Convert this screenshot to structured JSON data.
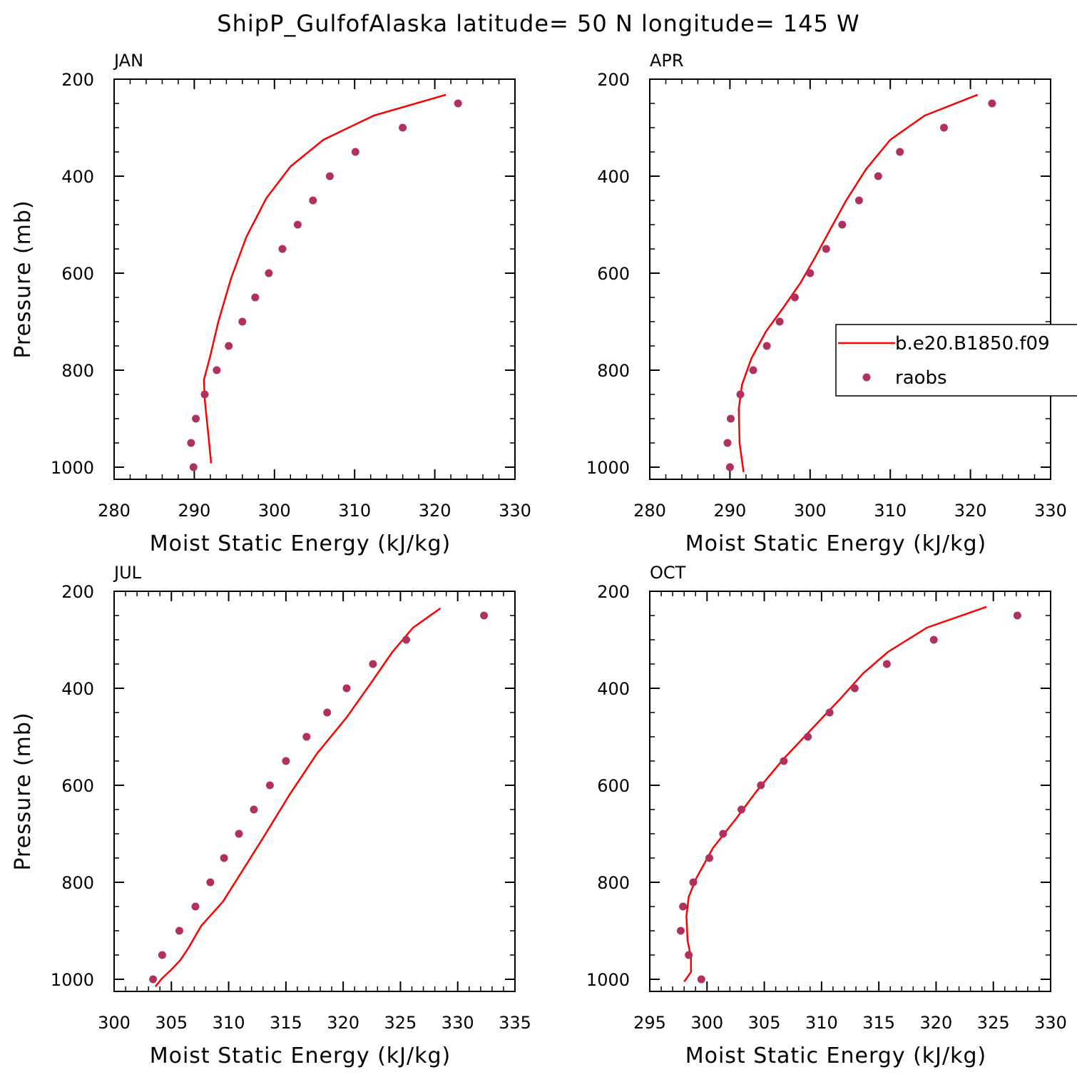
{
  "title": "ShipP_GulfofAlaska  latitude= 50 N longitude= 145 W",
  "colors": {
    "model_line": "#ff0000",
    "obs_marker": "#b03060",
    "axis": "#000000"
  },
  "legend": {
    "model_label": "b.e20.B1850.f09",
    "obs_label": "raobs"
  },
  "chart_data": [
    {
      "type": "line",
      "panel_title": "JAN",
      "xlabel": "Moist Static Energy (kJ/kg)",
      "ylabel": "Pressure (mb)",
      "xlim": [
        280,
        330
      ],
      "ylim": [
        1025,
        200
      ],
      "xticks": [
        280,
        290,
        300,
        310,
        320,
        330
      ],
      "yticks": [
        200,
        400,
        600,
        800,
        1000
      ],
      "series": [
        {
          "name": "b.e20.B1850.f09",
          "kind": "line",
          "x": [
            321.4,
            312.4,
            306.1,
            302.0,
            299.0,
            296.5,
            294.6,
            293.0,
            292.0,
            291.2,
            291.3,
            291.8,
            292.1
          ],
          "y": [
            232,
            275,
            325,
            380,
            445,
            525,
            610,
            700,
            770,
            820,
            860,
            940,
            992
          ]
        },
        {
          "name": "raobs",
          "kind": "scatter",
          "x": [
            322.9,
            316.0,
            310.1,
            306.9,
            304.8,
            302.9,
            301.0,
            299.3,
            297.6,
            296.0,
            294.3,
            292.8,
            291.3,
            290.2,
            289.6,
            289.9
          ],
          "y": [
            250,
            300,
            350,
            400,
            450,
            500,
            550,
            600,
            650,
            700,
            750,
            800,
            850,
            900,
            950,
            1000
          ]
        }
      ]
    },
    {
      "type": "line",
      "panel_title": "APR",
      "xlabel": "Moist Static Energy (kJ/kg)",
      "ylabel": "",
      "xlim": [
        280,
        330
      ],
      "ylim": [
        1025,
        200
      ],
      "xticks": [
        280,
        290,
        300,
        310,
        320,
        330
      ],
      "yticks": [
        200,
        400,
        600,
        800,
        1000
      ],
      "series": [
        {
          "name": "b.e20.B1850.f09",
          "kind": "line",
          "x": [
            320.9,
            314.3,
            310.0,
            307.0,
            304.5,
            302.5,
            300.7,
            298.8,
            296.7,
            294.5,
            292.7,
            291.5,
            291.1,
            291.2,
            291.7
          ],
          "y": [
            232,
            275,
            325,
            385,
            450,
            510,
            565,
            620,
            670,
            720,
            775,
            830,
            880,
            950,
            1010
          ]
        },
        {
          "name": "raobs",
          "kind": "scatter",
          "x": [
            322.7,
            316.7,
            311.2,
            308.5,
            306.1,
            304.0,
            302.0,
            300.0,
            298.1,
            296.2,
            294.6,
            292.9,
            291.3,
            290.1,
            289.7,
            290.0
          ],
          "y": [
            250,
            300,
            350,
            400,
            450,
            500,
            550,
            600,
            650,
            700,
            750,
            800,
            850,
            900,
            950,
            1000
          ]
        }
      ]
    },
    {
      "type": "line",
      "panel_title": "JUL",
      "xlabel": "Moist Static Energy (kJ/kg)",
      "ylabel": "Pressure (mb)",
      "xlim": [
        300,
        335
      ],
      "ylim": [
        1025,
        200
      ],
      "xticks": [
        300,
        305,
        310,
        315,
        320,
        325,
        330,
        335
      ],
      "yticks": [
        200,
        400,
        600,
        800,
        1000
      ],
      "series": [
        {
          "name": "b.e20.B1850.f09",
          "kind": "line",
          "x": [
            328.5,
            326.1,
            324.3,
            322.4,
            320.3,
            317.7,
            315.3,
            313.1,
            311.1,
            309.5,
            307.6,
            306.5,
            305.8,
            305.0,
            304.2,
            303.6
          ],
          "y": [
            235,
            275,
            325,
            390,
            460,
            535,
            620,
            705,
            780,
            840,
            890,
            935,
            960,
            980,
            998,
            1015
          ]
        },
        {
          "name": "raobs",
          "kind": "scatter",
          "x": [
            332.3,
            325.5,
            322.6,
            320.3,
            318.6,
            316.8,
            315.0,
            313.6,
            312.2,
            310.9,
            309.6,
            308.4,
            307.1,
            305.7,
            304.2,
            303.4
          ],
          "y": [
            250,
            300,
            350,
            400,
            450,
            500,
            550,
            600,
            650,
            700,
            750,
            800,
            850,
            900,
            950,
            1000
          ]
        }
      ]
    },
    {
      "type": "line",
      "panel_title": "OCT",
      "xlabel": "Moist Static Energy (kJ/kg)",
      "ylabel": "",
      "xlim": [
        295,
        330
      ],
      "ylim": [
        1025,
        200
      ],
      "xticks": [
        295,
        300,
        305,
        310,
        315,
        320,
        325,
        330
      ],
      "yticks": [
        200,
        400,
        600,
        800,
        1000
      ],
      "series": [
        {
          "name": "b.e20.B1850.f09",
          "kind": "line",
          "x": [
            324.4,
            319.2,
            315.8,
            313.6,
            311.7,
            309.3,
            306.7,
            304.4,
            302.5,
            300.5,
            299.1,
            298.4,
            298.2,
            298.3,
            298.6,
            298.6,
            298.0
          ],
          "y": [
            232,
            275,
            325,
            370,
            420,
            480,
            545,
            610,
            670,
            730,
            790,
            830,
            870,
            920,
            955,
            985,
            1005
          ]
        },
        {
          "name": "raobs",
          "kind": "scatter",
          "x": [
            327.1,
            319.8,
            315.7,
            312.9,
            310.7,
            308.8,
            306.7,
            304.7,
            303.0,
            301.4,
            300.2,
            298.8,
            297.9,
            297.7,
            298.4,
            299.5
          ],
          "y": [
            250,
            300,
            350,
            400,
            450,
            500,
            550,
            600,
            650,
            700,
            750,
            800,
            850,
            900,
            950,
            1000
          ]
        }
      ]
    }
  ]
}
